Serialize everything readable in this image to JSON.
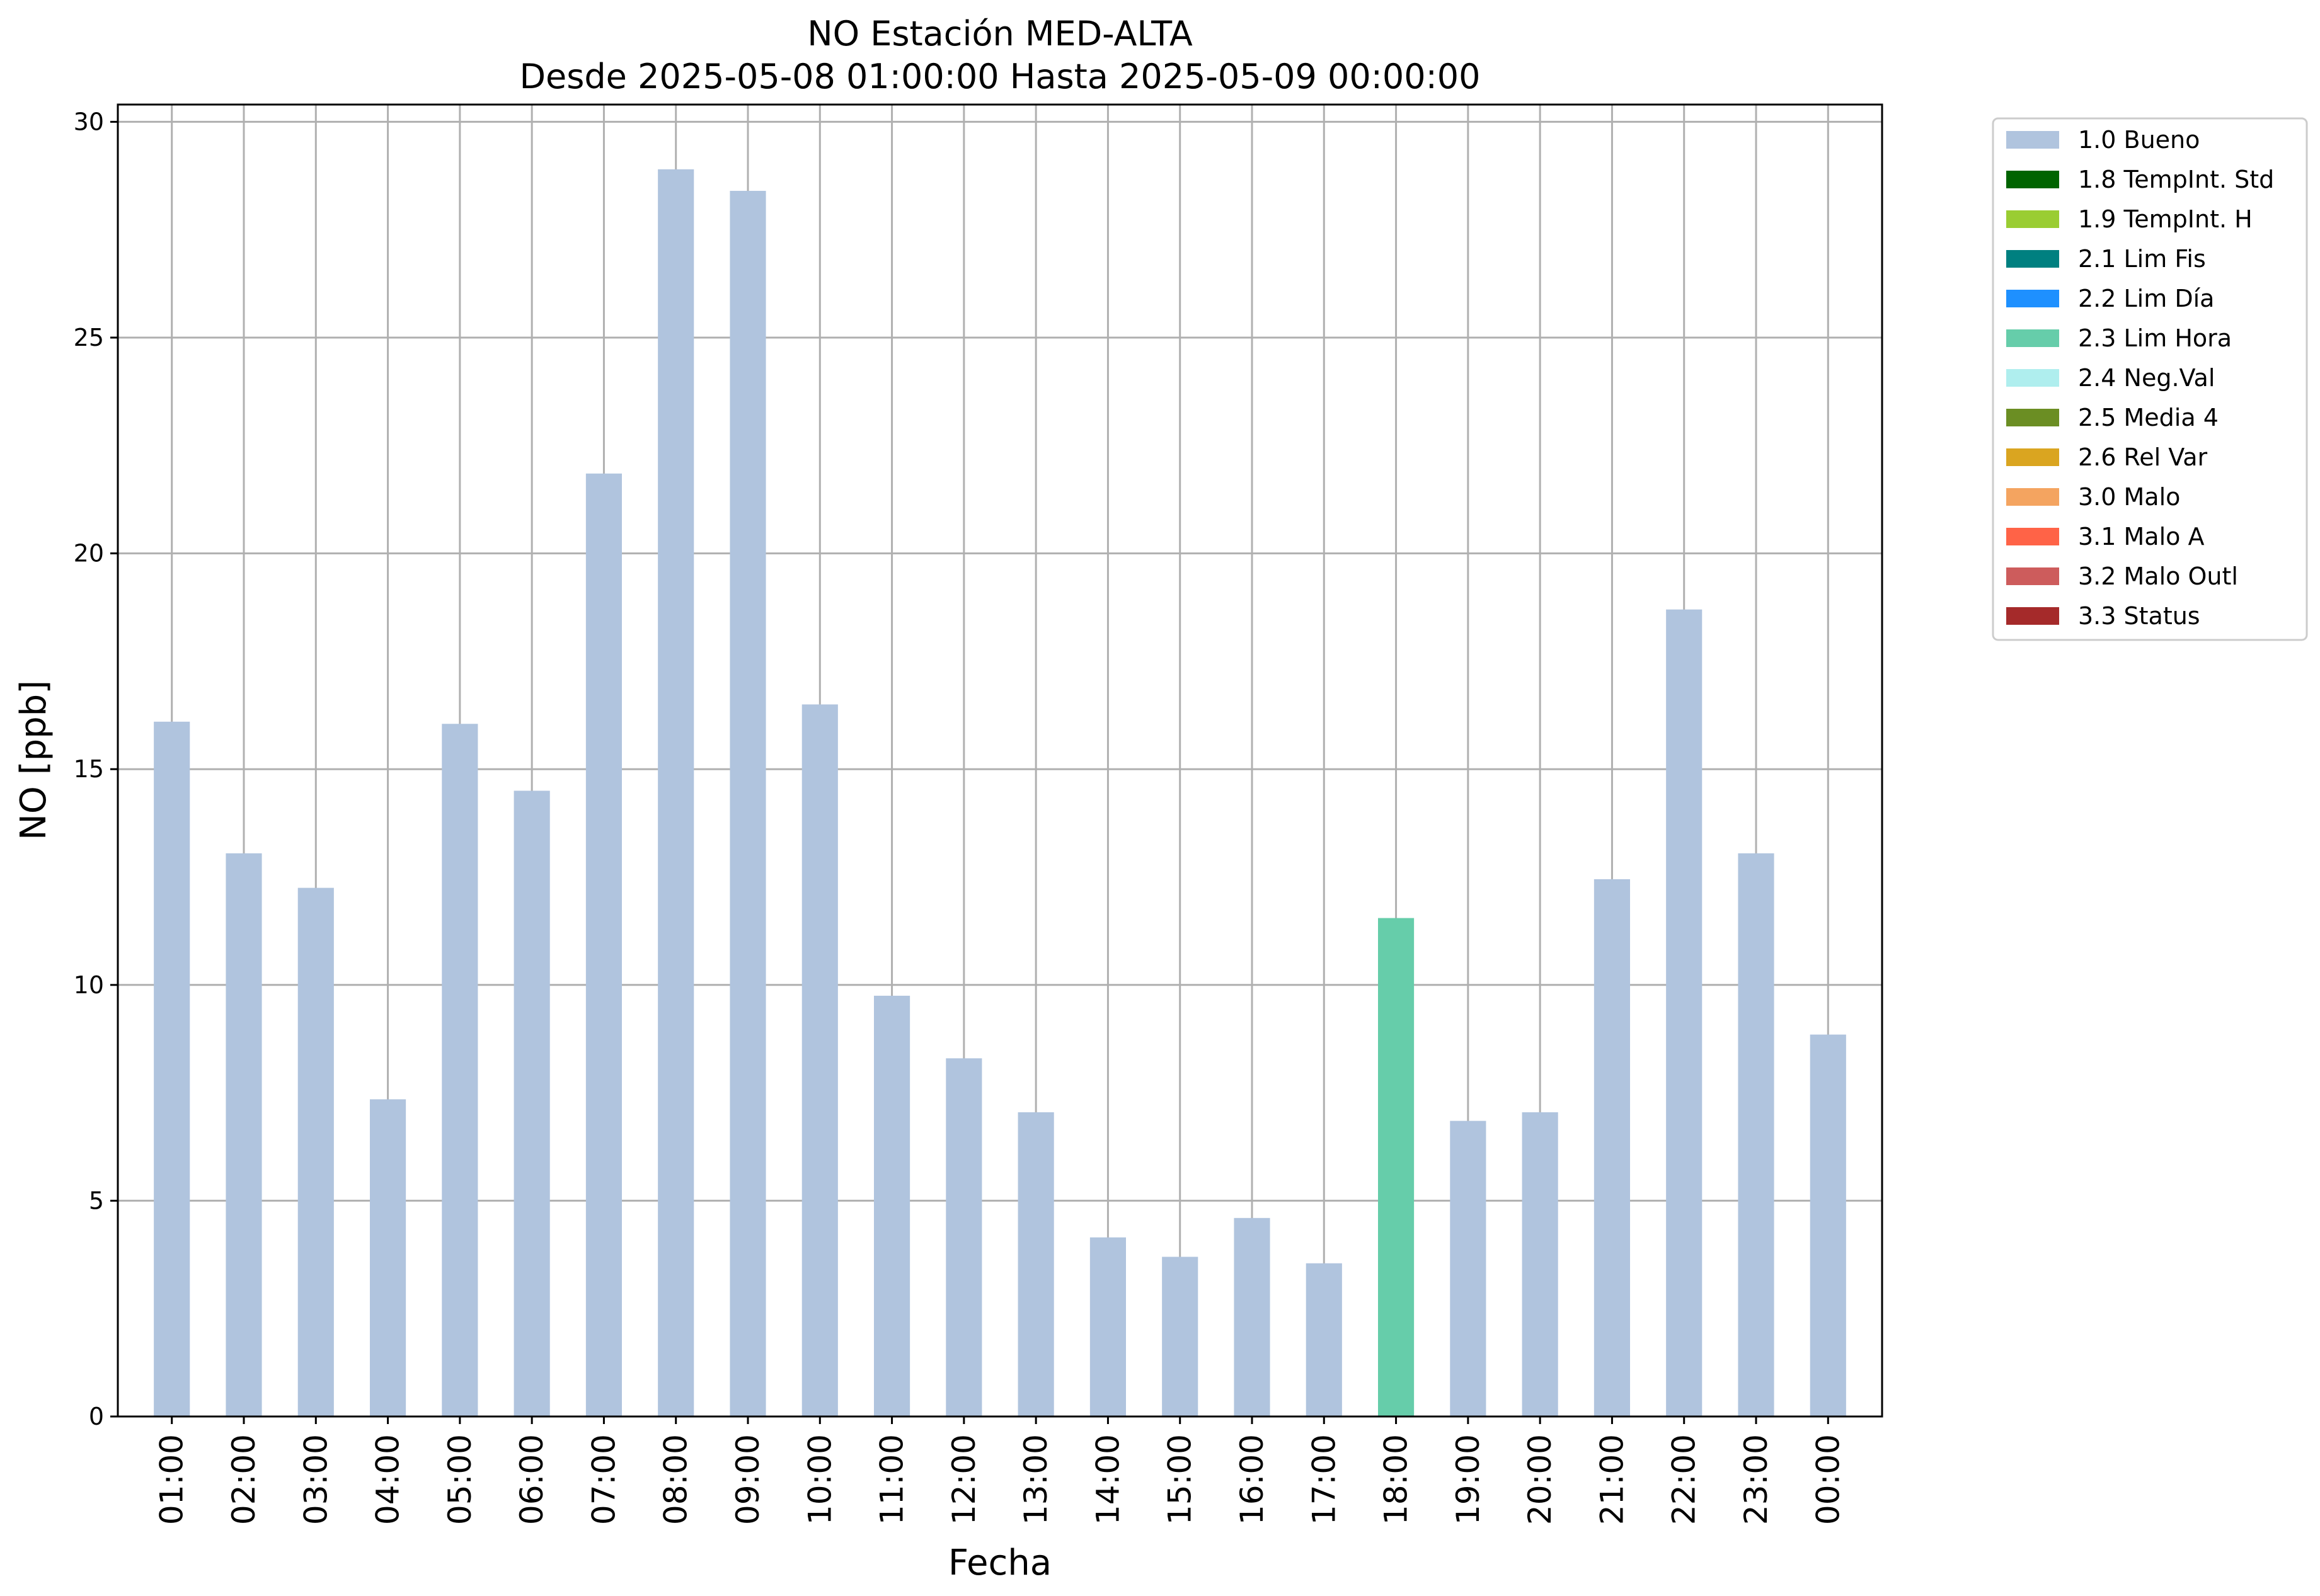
{
  "chart_data": {
    "type": "bar",
    "title": "NO Estación MED-ALTA",
    "subtitle": "Desde 2025-05-08 01:00:00 Hasta 2025-05-09 00:00:00",
    "xlabel": "Fecha",
    "ylabel": "NO [ppb]",
    "ylim": [
      0,
      30.4
    ],
    "yticks": [
      0,
      5,
      10,
      15,
      20,
      25,
      30
    ],
    "grid": true,
    "legend_position": "outside-top-right",
    "categories": [
      "01:00",
      "02:00",
      "03:00",
      "04:00",
      "05:00",
      "06:00",
      "07:00",
      "08:00",
      "09:00",
      "10:00",
      "11:00",
      "12:00",
      "13:00",
      "14:00",
      "15:00",
      "16:00",
      "17:00",
      "18:00",
      "19:00",
      "20:00",
      "21:00",
      "22:00",
      "23:00",
      "00:00"
    ],
    "values": [
      16.1,
      13.05,
      12.25,
      7.35,
      16.05,
      14.5,
      21.85,
      28.9,
      28.4,
      16.5,
      9.75,
      8.3,
      7.05,
      4.15,
      3.7,
      4.6,
      3.55,
      11.55,
      6.85,
      7.05,
      12.45,
      18.7,
      13.05,
      8.85
    ],
    "flags": [
      "1.0",
      "1.0",
      "1.0",
      "1.0",
      "1.0",
      "1.0",
      "1.0",
      "1.0",
      "1.0",
      "1.0",
      "1.0",
      "1.0",
      "1.0",
      "1.0",
      "1.0",
      "1.0",
      "1.0",
      "2.3",
      "1.0",
      "1.0",
      "1.0",
      "1.0",
      "1.0",
      "1.0"
    ],
    "legend": [
      {
        "code": "1.0",
        "label": "1.0 Bueno",
        "color": "#b0c4de"
      },
      {
        "code": "1.8",
        "label": "1.8 TempInt. Std",
        "color": "#006400"
      },
      {
        "code": "1.9",
        "label": "1.9 TempInt. H",
        "color": "#9acd32"
      },
      {
        "code": "2.1",
        "label": "2.1 Lim Fis",
        "color": "#008080"
      },
      {
        "code": "2.2",
        "label": "2.2 Lim Día",
        "color": "#1e90ff"
      },
      {
        "code": "2.3",
        "label": "2.3 Lim Hora",
        "color": "#66cdaa"
      },
      {
        "code": "2.4",
        "label": "2.4 Neg.Val",
        "color": "#afeeee"
      },
      {
        "code": "2.5",
        "label": "2.5 Media 4",
        "color": "#6b8e23"
      },
      {
        "code": "2.6",
        "label": "2.6 Rel Var",
        "color": "#daa520"
      },
      {
        "code": "3.0",
        "label": "3.0 Malo",
        "color": "#f4a460"
      },
      {
        "code": "3.1",
        "label": "3.1 Malo A",
        "color": "#ff6347"
      },
      {
        "code": "3.2",
        "label": "3.2 Malo Outl",
        "color": "#cd5c5c"
      },
      {
        "code": "3.3",
        "label": "3.3 Status",
        "color": "#a52a2a"
      }
    ]
  }
}
